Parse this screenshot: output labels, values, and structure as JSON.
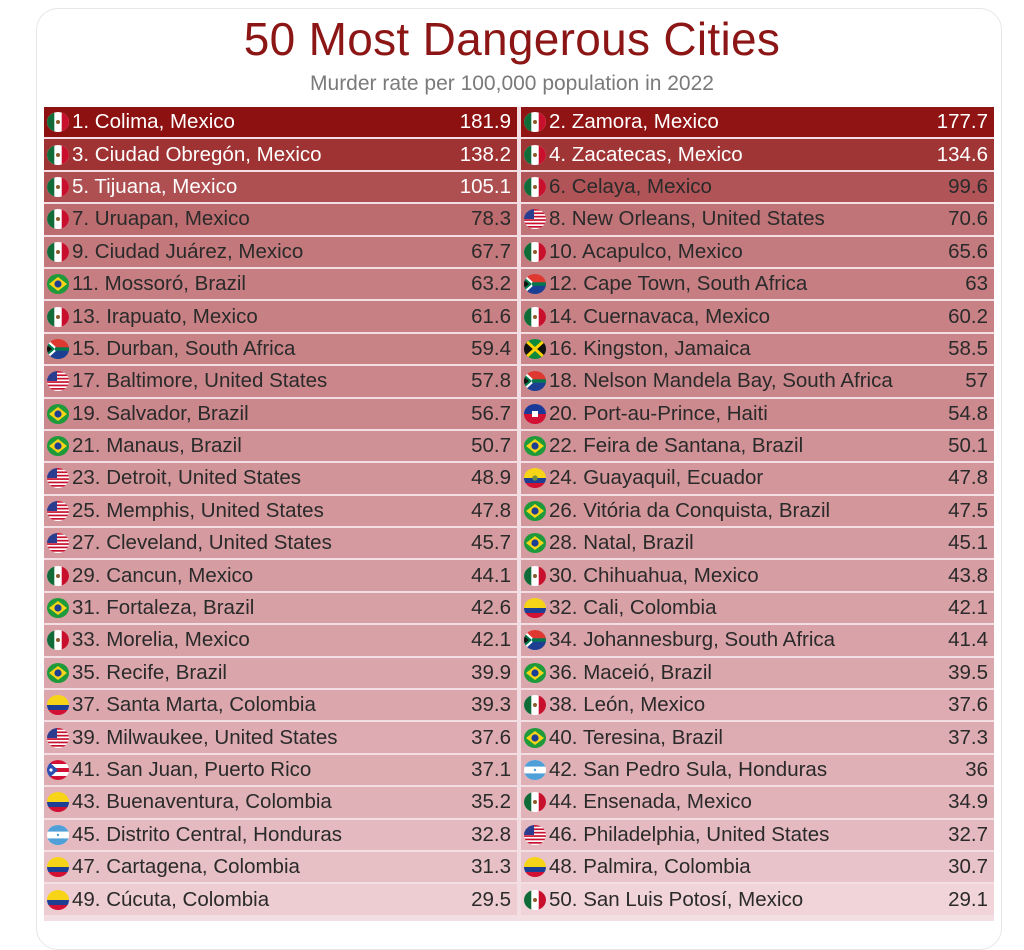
{
  "title": "50 Most Dangerous Cities",
  "subtitle": "Murder rate per 100,000 population in 2022",
  "colors": {
    "title": "#8c1515",
    "row_strongest": "#8e1111",
    "row_faintest": "#f1d3da"
  },
  "flag_icons": {
    "Mexico": "mexico-flag-icon",
    "United States": "usa-flag-icon",
    "Brazil": "brazil-flag-icon",
    "South Africa": "south-africa-flag-icon",
    "Jamaica": "jamaica-flag-icon",
    "Haiti": "haiti-flag-icon",
    "Ecuador": "ecuador-flag-icon",
    "Colombia": "colombia-flag-icon",
    "Puerto Rico": "puerto-rico-flag-icon",
    "Honduras": "honduras-flag-icon"
  },
  "chart_data": {
    "type": "table",
    "title": "50 Most Dangerous Cities",
    "subtitle": "Murder rate per 100,000 population in 2022",
    "columns": [
      [
        {
          "label": "1. Colima, Mexico",
          "country": "Mexico",
          "value": "181.9"
        },
        {
          "label": "3. Ciudad Obregón, Mexico",
          "country": "Mexico",
          "value": "138.2"
        },
        {
          "label": "5. Tijuana, Mexico",
          "country": "Mexico",
          "value": "105.1"
        },
        {
          "label": "7. Uruapan, Mexico",
          "country": "Mexico",
          "value": "78.3"
        },
        {
          "label": "9. Ciudad Juárez, Mexico",
          "country": "Mexico",
          "value": "67.7"
        },
        {
          "label": "11. Mossoró, Brazil",
          "country": "Brazil",
          "value": "63.2"
        },
        {
          "label": "13. Irapuato, Mexico",
          "country": "Mexico",
          "value": "61.6"
        },
        {
          "label": "15. Durban, South Africa",
          "country": "South Africa",
          "value": "59.4"
        },
        {
          "label": "17. Baltimore, United States",
          "country": "United States",
          "value": "57.8"
        },
        {
          "label": "19. Salvador, Brazil",
          "country": "Brazil",
          "value": "56.7"
        },
        {
          "label": "21. Manaus, Brazil",
          "country": "Brazil",
          "value": "50.7"
        },
        {
          "label": "23. Detroit, United States",
          "country": "United States",
          "value": "48.9"
        },
        {
          "label": "25. Memphis, United States",
          "country": "United States",
          "value": "47.8"
        },
        {
          "label": "27. Cleveland, United States",
          "country": "United States",
          "value": "45.7"
        },
        {
          "label": "29. Cancun, Mexico",
          "country": "Mexico",
          "value": "44.1"
        },
        {
          "label": "31. Fortaleza, Brazil",
          "country": "Brazil",
          "value": "42.6"
        },
        {
          "label": "33. Morelia, Mexico",
          "country": "Mexico",
          "value": "42.1"
        },
        {
          "label": "35. Recife, Brazil",
          "country": "Brazil",
          "value": "39.9"
        },
        {
          "label": "37. Santa Marta, Colombia",
          "country": "Colombia",
          "value": "39.3"
        },
        {
          "label": "39. Milwaukee, United States",
          "country": "United States",
          "value": "37.6"
        },
        {
          "label": "41. San Juan, Puerto Rico",
          "country": "Puerto Rico",
          "value": "37.1"
        },
        {
          "label": "43. Buenaventura, Colombia",
          "country": "Colombia",
          "value": "35.2"
        },
        {
          "label": "45. Distrito Central, Honduras",
          "country": "Honduras",
          "value": "32.8"
        },
        {
          "label": "47. Cartagena, Colombia",
          "country": "Colombia",
          "value": "31.3"
        },
        {
          "label": "49. Cúcuta, Colombia",
          "country": "Colombia",
          "value": "29.5"
        }
      ],
      [
        {
          "label": "2. Zamora, Mexico",
          "country": "Mexico",
          "value": "177.7"
        },
        {
          "label": "4. Zacatecas, Mexico",
          "country": "Mexico",
          "value": "134.6"
        },
        {
          "label": "6. Celaya, Mexico",
          "country": "Mexico",
          "value": "99.6"
        },
        {
          "label": "8. New Orleans, United States",
          "country": "United States",
          "value": "70.6"
        },
        {
          "label": "10. Acapulco, Mexico",
          "country": "Mexico",
          "value": "65.6"
        },
        {
          "label": "12. Cape Town, South Africa",
          "country": "South Africa",
          "value": "63"
        },
        {
          "label": "14. Cuernavaca, Mexico",
          "country": "Mexico",
          "value": "60.2"
        },
        {
          "label": "16. Kingston, Jamaica",
          "country": "Jamaica",
          "value": "58.5"
        },
        {
          "label": "18. Nelson Mandela Bay, South Africa",
          "country": "South Africa",
          "value": "57"
        },
        {
          "label": "20. Port-au-Prince, Haiti",
          "country": "Haiti",
          "value": "54.8"
        },
        {
          "label": "22. Feira de Santana, Brazil",
          "country": "Brazil",
          "value": "50.1"
        },
        {
          "label": "24. Guayaquil, Ecuador",
          "country": "Ecuador",
          "value": "47.8"
        },
        {
          "label": "26. Vitória da Conquista, Brazil",
          "country": "Brazil",
          "value": "47.5"
        },
        {
          "label": "28. Natal, Brazil",
          "country": "Brazil",
          "value": "45.1"
        },
        {
          "label": "30. Chihuahua, Mexico",
          "country": "Mexico",
          "value": "43.8"
        },
        {
          "label": "32. Cali, Colombia",
          "country": "Colombia",
          "value": "42.1"
        },
        {
          "label": "34. Johannesburg, South Africa",
          "country": "South Africa",
          "value": "41.4"
        },
        {
          "label": "36. Maceió, Brazil",
          "country": "Brazil",
          "value": "39.5"
        },
        {
          "label": "38. León, Mexico",
          "country": "Mexico",
          "value": "37.6"
        },
        {
          "label": "40. Teresina, Brazil",
          "country": "Brazil",
          "value": "37.3"
        },
        {
          "label": "42. San Pedro Sula, Honduras",
          "country": "Honduras",
          "value": "36"
        },
        {
          "label": "44. Ensenada, Mexico",
          "country": "Mexico",
          "value": "34.9"
        },
        {
          "label": "46. Philadelphia, United States",
          "country": "United States",
          "value": "32.7"
        },
        {
          "label": "48. Palmira, Colombia",
          "country": "Colombia",
          "value": "30.7"
        },
        {
          "label": "50. San Luis Potosí, Mexico",
          "country": "Mexico",
          "value": "29.1"
        }
      ]
    ]
  }
}
